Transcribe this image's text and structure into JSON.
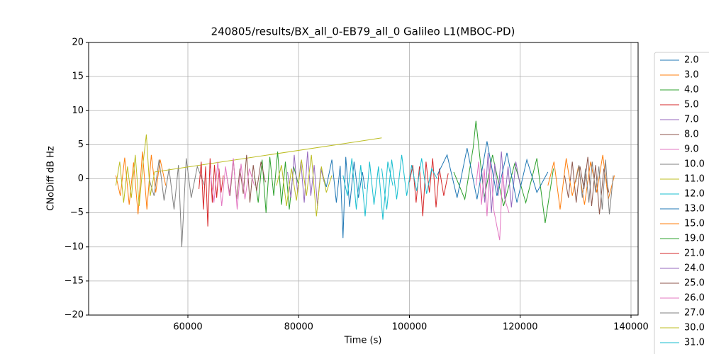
{
  "chart_data": {
    "type": "line",
    "title": "240805/results/BX_all_0-EB79_all_0 Galileo L1(MBOC-PD)",
    "xlabel": "Time (s)",
    "ylabel": "CNoDiff dB Hz",
    "xlim": [
      42080,
      141280
    ],
    "ylim": [
      -20,
      20
    ],
    "xticks": [
      60000,
      80000,
      100000,
      120000,
      140000
    ],
    "yticks": [
      {
        "value": -20,
        "label": "−20"
      },
      {
        "value": -15,
        "label": "−15"
      },
      {
        "value": -10,
        "label": "−10"
      },
      {
        "value": -5,
        "label": "−5"
      },
      0,
      5,
      10,
      15,
      20
    ],
    "grid": true,
    "legend": "right",
    "series": [
      {
        "name": "2.0",
        "color": "#1f77b4",
        "x": [
          84000,
          85000,
          86000,
          86800,
          87500,
          88000,
          88500,
          89200,
          90000,
          90800,
          91500,
          92000
        ],
        "values": [
          1.5,
          -1.2,
          2.8,
          -3.5,
          1.9,
          -8.7,
          3.2,
          -4.1,
          2.5,
          -2.8,
          1.0,
          -1.5
        ]
      },
      {
        "name": "3.0",
        "color": "#ff7f0e",
        "x": [
          47000,
          47800,
          48600,
          49400,
          50200,
          51000,
          51800,
          52600,
          53400,
          54200,
          55000,
          56000
        ],
        "values": [
          0.5,
          -2.5,
          3.1,
          -3.8,
          2.4,
          -5.2,
          4.0,
          -4.5,
          3.5,
          -2.0,
          2.8,
          -1.0
        ]
      },
      {
        "name": "4.0",
        "color": "#2ca02c",
        "x": [
          108000,
          110000,
          111500,
          112000,
          113500,
          115000,
          117000,
          119000,
          121000,
          123000,
          124500,
          126000
        ],
        "values": [
          1.0,
          -3.0,
          4.5,
          8.5,
          -2.8,
          3.5,
          -4.0,
          2.2,
          -3.5,
          3.0,
          -6.5,
          1.5
        ]
      },
      {
        "name": "5.0",
        "color": "#d62728",
        "x": [
          100000,
          100600,
          101200,
          101800,
          102400,
          103000,
          103600,
          104200,
          104800,
          105400,
          106200,
          107000
        ],
        "values": [
          -0.5,
          2.0,
          -3.5,
          1.8,
          -5.5,
          2.5,
          -2.0,
          3.0,
          -4.2,
          1.5,
          -2.5,
          0.8
        ]
      },
      {
        "name": "7.0",
        "color": "#9467bd",
        "x": [
          113000,
          113600,
          114200,
          114800,
          115400,
          116000,
          116600,
          117200,
          117800,
          118400,
          119200,
          120000
        ],
        "values": [
          1.5,
          -3.5,
          3.8,
          -5.0,
          2.2,
          -2.5,
          4.0,
          -3.0,
          1.8,
          -4.2,
          2.5,
          -1.0
        ]
      },
      {
        "name": "8.0",
        "color": "#8c564b",
        "x": [
          128000,
          128700,
          129400,
          130100,
          130800,
          131500,
          132200,
          132900,
          133600,
          134300,
          135100,
          136000
        ],
        "values": [
          0.5,
          -2.8,
          2.5,
          -3.5,
          1.8,
          -1.5,
          3.2,
          -4.0,
          2.0,
          -5.2,
          1.5,
          -2.0
        ]
      },
      {
        "name": "9.0",
        "color": "#e377c2",
        "x": [
          112000,
          112500,
          113000,
          113500,
          114000,
          114600,
          115200,
          115800,
          116300,
          116800,
          117400,
          118000
        ],
        "values": [
          -1.0,
          2.5,
          -3.8,
          1.5,
          -5.5,
          2.8,
          -4.5,
          -7.0,
          -9.0,
          1.0,
          -3.5,
          -5.0
        ]
      },
      {
        "name": "10.0",
        "color": "#7f7f7f",
        "x": [
          53000,
          53900,
          54800,
          55700,
          56600,
          57500,
          58300,
          58900,
          59700,
          60600,
          61700,
          63000
        ],
        "values": [
          0.0,
          -2.5,
          2.8,
          -3.2,
          1.5,
          -4.5,
          2.0,
          -10.0,
          3.0,
          -2.8,
          1.8,
          -1.0
        ]
      },
      {
        "name": "11.0",
        "color": "#bcbd22",
        "x": [
          47000,
          47700,
          48400,
          49100,
          49800,
          50500,
          51200,
          51900,
          52500,
          53200,
          54000,
          95000
        ],
        "values": [
          -1.0,
          2.5,
          -3.5,
          1.8,
          -2.8,
          3.5,
          -4.0,
          2.2,
          6.5,
          -2.5,
          1.0,
          6.0
        ]
      },
      {
        "name": "12.0",
        "color": "#17becf",
        "x": [
          95000,
          95900,
          96800,
          97700,
          98600,
          99500,
          100400,
          101300,
          102200,
          103100,
          104000,
          105000
        ],
        "values": [
          1.5,
          -4.5,
          2.8,
          -3.0,
          3.5,
          -2.5,
          2.0,
          -1.8,
          3.0,
          -2.2,
          1.5,
          0.0
        ]
      },
      {
        "name": "13.0",
        "color": "#1f77b4",
        "x": [
          105000,
          106800,
          108600,
          110400,
          112200,
          114000,
          115800,
          117600,
          119400,
          121200,
          123000,
          125000
        ],
        "values": [
          0.5,
          3.5,
          -2.8,
          4.5,
          -3.0,
          5.5,
          -2.5,
          3.8,
          -3.5,
          2.8,
          -2.0,
          1.0
        ]
      },
      {
        "name": "15.0",
        "color": "#ff7f0e",
        "x": [
          125000,
          126100,
          127200,
          128300,
          129400,
          130500,
          131600,
          132700,
          133800,
          134900,
          135900,
          137000
        ],
        "values": [
          -1.0,
          2.5,
          -4.5,
          3.0,
          -2.5,
          1.8,
          -3.8,
          2.5,
          -2.0,
          3.5,
          -3.0,
          0.5
        ]
      },
      {
        "name": "19.0",
        "color": "#2ca02c",
        "x": [
          72000,
          72700,
          73400,
          74100,
          74800,
          75500,
          76200,
          76900,
          77600,
          78300,
          79100,
          80000
        ],
        "values": [
          0.5,
          -3.5,
          2.8,
          -5.0,
          3.2,
          -2.5,
          4.0,
          -3.8,
          2.5,
          -4.5,
          1.8,
          -1.0
        ]
      },
      {
        "name": "21.0",
        "color": "#d62728",
        "x": [
          62000,
          62400,
          62800,
          63200,
          63600,
          64000,
          64400,
          64800,
          65200,
          65600,
          66000,
          66400
        ],
        "values": [
          -1.5,
          2.5,
          -4.5,
          1.8,
          -7.0,
          3.0,
          -3.5,
          2.0,
          -2.8,
          1.5,
          -2.0,
          0.5
        ]
      },
      {
        "name": "24.0",
        "color": "#9467bd",
        "x": [
          78000,
          78600,
          79200,
          79800,
          80400,
          81000,
          81600,
          82200,
          82800,
          83400,
          84000,
          84600
        ],
        "values": [
          1.0,
          -2.8,
          3.5,
          -2.0,
          2.5,
          -3.5,
          4.0,
          -2.5,
          2.0,
          -4.0,
          1.5,
          -0.5
        ]
      },
      {
        "name": "25.0",
        "color": "#8c564b",
        "x": [
          67000,
          67600,
          68200,
          68800,
          69400,
          70000,
          70600,
          71200,
          71800,
          72400,
          73200,
          74000
        ],
        "values": [
          0.5,
          -2.5,
          2.8,
          -3.0,
          1.5,
          -2.2,
          3.5,
          -3.5,
          2.0,
          -1.8,
          2.5,
          -0.5
        ]
      },
      {
        "name": "26.0",
        "color": "#e377c2",
        "x": [
          64000,
          64700,
          65400,
          66100,
          66800,
          67500,
          68200,
          68900,
          69600,
          70300,
          71100,
          72000
        ],
        "values": [
          1.5,
          -3.5,
          2.5,
          -4.0,
          1.8,
          -2.5,
          3.0,
          -4.5,
          2.2,
          -3.0,
          1.5,
          -1.0
        ]
      },
      {
        "name": "27.0",
        "color": "#7f7f7f",
        "x": [
          130000,
          130600,
          131200,
          131800,
          132400,
          133000,
          133600,
          134200,
          134800,
          135400,
          136100,
          136800
        ],
        "values": [
          -0.5,
          2.0,
          -2.8,
          1.5,
          -3.5,
          2.5,
          -2.0,
          1.8,
          -4.5,
          2.8,
          -5.2,
          0.5
        ]
      },
      {
        "name": "30.0",
        "color": "#bcbd22",
        "x": [
          76000,
          76900,
          77800,
          78700,
          79600,
          80500,
          81400,
          82300,
          83200,
          84100,
          85000,
          86000
        ],
        "values": [
          -1.0,
          2.0,
          -4.0,
          1.5,
          -3.2,
          2.8,
          -2.5,
          3.5,
          -5.5,
          1.8,
          -2.0,
          0.5
        ]
      },
      {
        "name": "31.0",
        "color": "#17becf",
        "x": [
          88000,
          88800,
          89600,
          90400,
          91200,
          92000,
          92800,
          93600,
          94400,
          95200,
          96100,
          97000
        ],
        "values": [
          0.5,
          -2.5,
          3.0,
          -4.5,
          2.0,
          -5.5,
          2.5,
          -3.8,
          1.8,
          -6.0,
          2.5,
          -1.0
        ]
      }
    ]
  }
}
